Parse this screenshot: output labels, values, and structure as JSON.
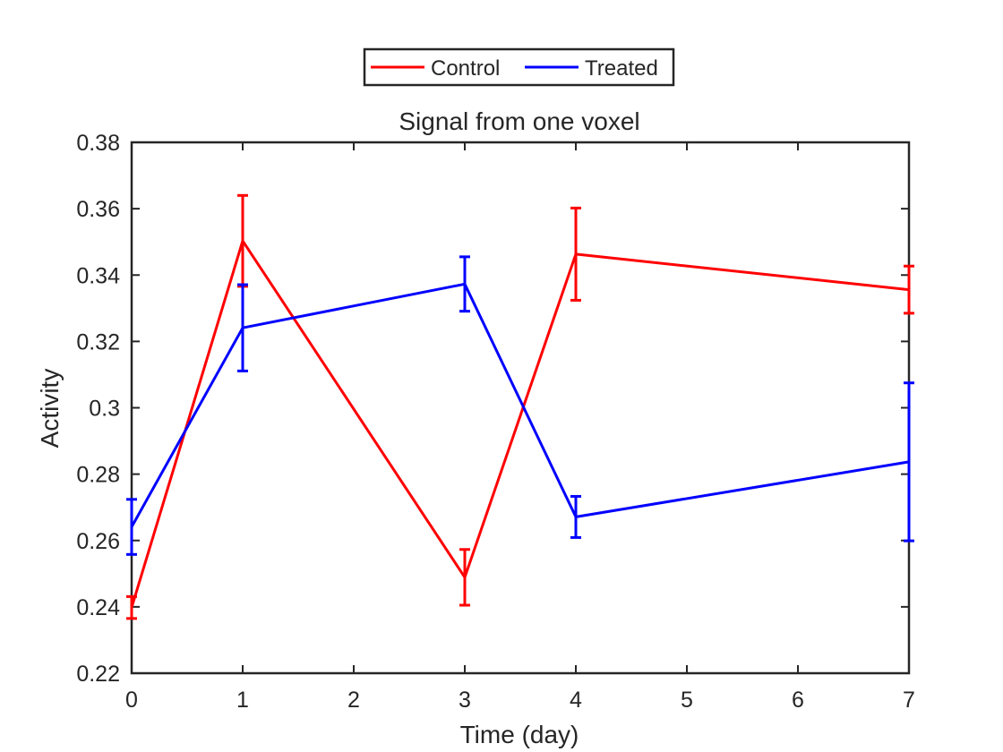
{
  "chart_data": {
    "type": "line",
    "title": "Signal from one voxel",
    "xlabel": "Time (day)",
    "ylabel": "Activity",
    "xlim": [
      0,
      7
    ],
    "ylim": [
      0.22,
      0.38
    ],
    "xticks": [
      0,
      1,
      2,
      3,
      4,
      5,
      6,
      7
    ],
    "xtick_labels": [
      "0",
      "1",
      "2",
      "3",
      "4",
      "5",
      "6",
      "7"
    ],
    "yticks": [
      0.22,
      0.24,
      0.26,
      0.28,
      0.3,
      0.32,
      0.34,
      0.36,
      0.38
    ],
    "ytick_labels": [
      "0.22",
      "0.24",
      "0.26",
      "0.28",
      "0.3",
      "0.32",
      "0.34",
      "0.36",
      "0.38"
    ],
    "grid": false,
    "legend_position": "top-center",
    "series": [
      {
        "name": "Control",
        "color": "#ff0000",
        "x": [
          0,
          1,
          3,
          4,
          7
        ],
        "y": [
          0.2398,
          0.3503,
          0.2489,
          0.3463,
          0.3356
        ],
        "error": [
          0.0033,
          0.0137,
          0.0084,
          0.0139,
          0.0071
        ]
      },
      {
        "name": "Treated",
        "color": "#0000ff",
        "x": [
          0,
          1,
          3,
          4,
          7
        ],
        "y": [
          0.2641,
          0.3241,
          0.3373,
          0.2671,
          0.2837
        ],
        "error": [
          0.0083,
          0.013,
          0.0082,
          0.0062,
          0.0238
        ]
      }
    ]
  }
}
